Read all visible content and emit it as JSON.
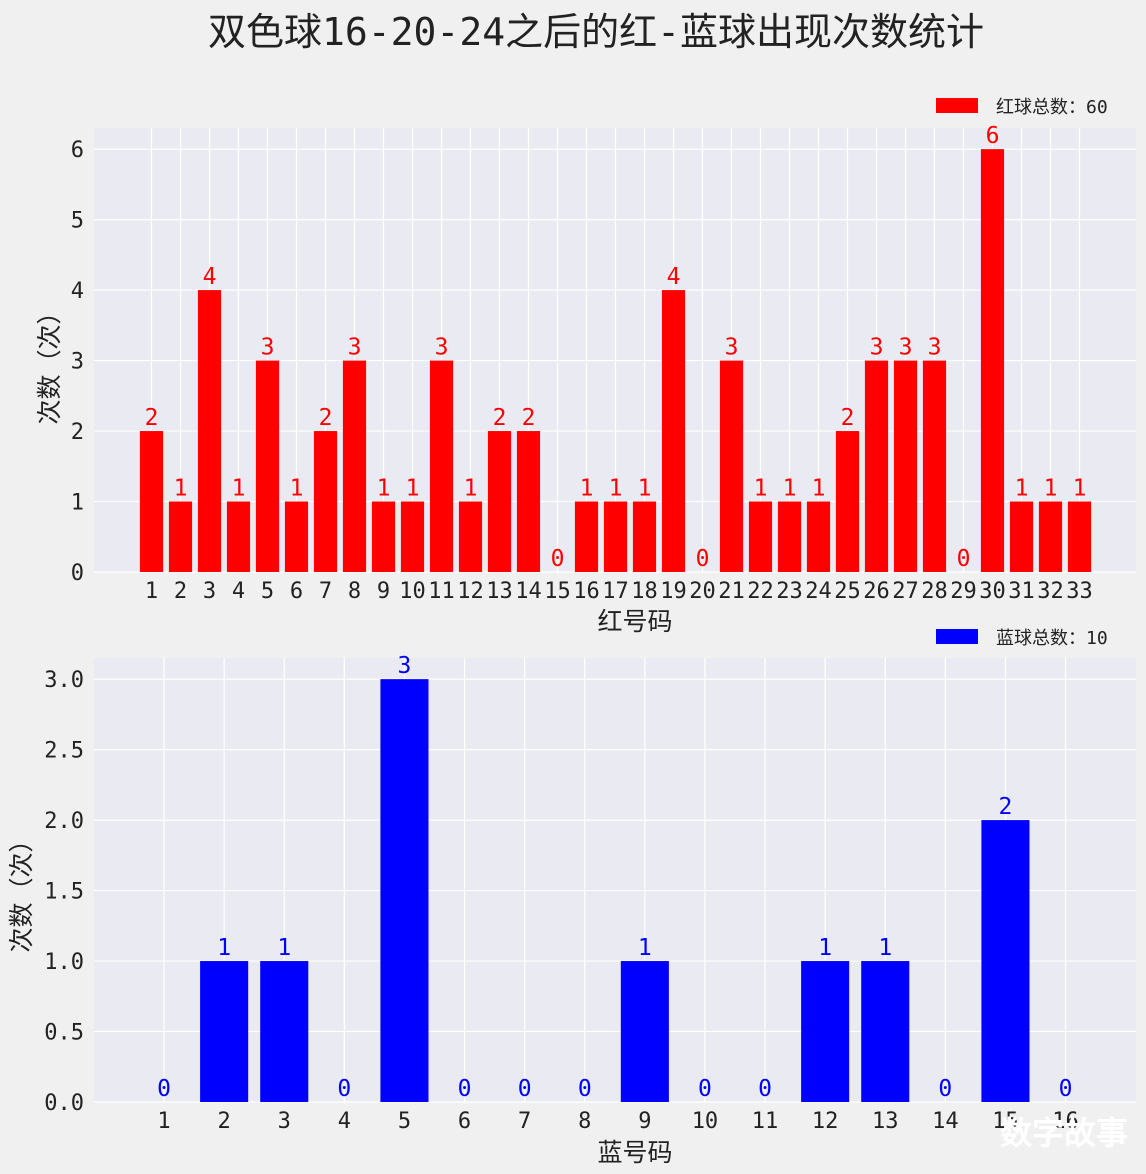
{
  "title": "双色球16-20-24之后的红-蓝球出现次数统计",
  "watermark": "数字故事",
  "chart_data": [
    {
      "type": "bar",
      "categories": [
        "1",
        "2",
        "3",
        "4",
        "5",
        "6",
        "7",
        "8",
        "9",
        "10",
        "11",
        "12",
        "13",
        "14",
        "15",
        "16",
        "17",
        "18",
        "19",
        "20",
        "21",
        "22",
        "23",
        "24",
        "25",
        "26",
        "27",
        "28",
        "29",
        "30",
        "31",
        "32",
        "33"
      ],
      "values": [
        2,
        1,
        4,
        1,
        3,
        1,
        2,
        3,
        1,
        1,
        3,
        1,
        2,
        2,
        0,
        1,
        1,
        1,
        4,
        0,
        3,
        1,
        1,
        1,
        2,
        3,
        3,
        3,
        0,
        6,
        1,
        1,
        1
      ],
      "xlabel": "红号码",
      "ylabel": "次数（次）",
      "ylim": [
        0,
        6.3
      ],
      "yticks": [
        "0",
        "1",
        "2",
        "3",
        "4",
        "5",
        "6"
      ],
      "legend": "红球总数：60",
      "legend_position": "top-right",
      "color": "#ff0000",
      "grid": true
    },
    {
      "type": "bar",
      "categories": [
        "1",
        "2",
        "3",
        "4",
        "5",
        "6",
        "7",
        "8",
        "9",
        "10",
        "11",
        "12",
        "13",
        "14",
        "15",
        "16"
      ],
      "values": [
        0,
        1,
        1,
        0,
        3,
        0,
        0,
        0,
        1,
        0,
        0,
        1,
        1,
        0,
        2,
        0
      ],
      "xlabel": "蓝号码",
      "ylabel": "次数（次）",
      "ylim": [
        0,
        3.15
      ],
      "yticks": [
        "0.0",
        "0.5",
        "1.0",
        "1.5",
        "2.0",
        "2.5",
        "3.0"
      ],
      "legend": "蓝球总数：10",
      "legend_position": "top-right",
      "color": "#0000ff",
      "grid": true
    }
  ]
}
